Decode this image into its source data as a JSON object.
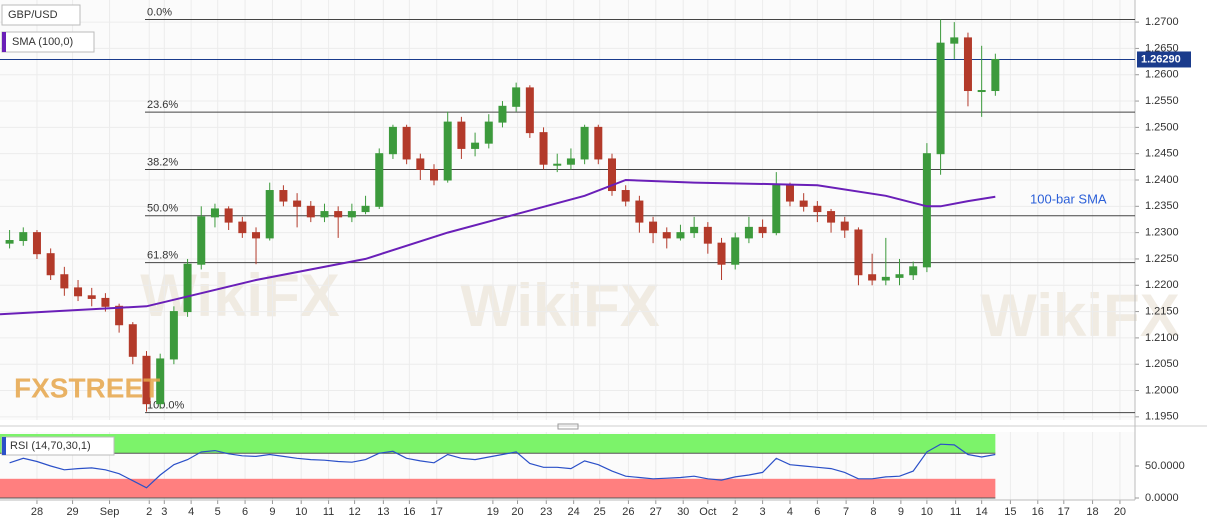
{
  "chart_data": {
    "type": "candlestick",
    "title": "GBP/USD",
    "bull_color": "#3c9a3c",
    "bear_color": "#b33a2a",
    "grid": true,
    "xlim": [
      -1.35,
      40.1
    ],
    "ylim": [
      1.1944,
      1.2742
    ],
    "x": [
      -1,
      -0.5,
      0,
      0.5,
      1,
      1.5,
      2,
      2.5,
      3,
      3.5,
      4,
      4.5,
      5,
      5.5,
      6,
      6.5,
      7,
      7.5,
      8,
      8.5,
      9,
      9.5,
      10,
      10.5,
      11,
      11.5,
      12,
      12.5,
      13,
      13.5,
      14,
      14.5,
      15,
      15.5,
      16,
      16.5,
      17,
      17.5,
      18,
      18.5,
      19,
      19.5,
      20,
      20.5,
      21,
      21.5,
      22,
      22.5,
      23,
      23.5,
      24,
      24.5,
      25,
      25.5,
      26,
      26.5,
      27,
      27.5,
      28,
      28.5,
      29,
      29.5,
      30,
      30.5,
      31,
      31.5,
      32,
      32.5,
      33,
      33.5,
      34,
      34.5,
      35
    ],
    "candles": [
      [
        1.228,
        1.2305,
        1.227,
        1.2285
      ],
      [
        1.2285,
        1.231,
        1.2275,
        1.23
      ],
      [
        1.23,
        1.2305,
        1.225,
        1.226
      ],
      [
        1.226,
        1.227,
        1.221,
        1.222
      ],
      [
        1.222,
        1.2235,
        1.218,
        1.2195
      ],
      [
        1.2195,
        1.221,
        1.217,
        1.218
      ],
      [
        1.218,
        1.2195,
        1.216,
        1.2175
      ],
      [
        1.2175,
        1.2185,
        1.215,
        1.216
      ],
      [
        1.216,
        1.2165,
        1.211,
        1.2125
      ],
      [
        1.2125,
        1.213,
        1.205,
        1.2065
      ],
      [
        1.2065,
        1.2075,
        1.196,
        1.1975
      ],
      [
        1.1975,
        1.207,
        1.1965,
        1.206
      ],
      [
        1.206,
        1.216,
        1.205,
        1.215
      ],
      [
        1.215,
        1.225,
        1.214,
        1.224
      ],
      [
        1.224,
        1.235,
        1.223,
        1.233
      ],
      [
        1.233,
        1.2355,
        1.231,
        1.2345
      ],
      [
        1.2345,
        1.235,
        1.2305,
        1.232
      ],
      [
        1.232,
        1.233,
        1.229,
        1.23
      ],
      [
        1.23,
        1.231,
        1.224,
        1.229
      ],
      [
        1.229,
        1.2395,
        1.2285,
        1.238
      ],
      [
        1.238,
        1.239,
        1.235,
        1.236
      ],
      [
        1.236,
        1.2375,
        1.231,
        1.235
      ],
      [
        1.235,
        1.236,
        1.232,
        1.233
      ],
      [
        1.233,
        1.2355,
        1.232,
        1.234
      ],
      [
        1.234,
        1.235,
        1.229,
        1.233
      ],
      [
        1.233,
        1.2355,
        1.232,
        1.234
      ],
      [
        1.234,
        1.237,
        1.2335,
        1.235
      ],
      [
        1.235,
        1.246,
        1.2345,
        1.245
      ],
      [
        1.245,
        1.2505,
        1.244,
        1.25
      ],
      [
        1.25,
        1.2505,
        1.243,
        1.244
      ],
      [
        1.244,
        1.245,
        1.24,
        1.242
      ],
      [
        1.242,
        1.243,
        1.239,
        1.24
      ],
      [
        1.24,
        1.253,
        1.2395,
        1.251
      ],
      [
        1.251,
        1.252,
        1.244,
        1.246
      ],
      [
        1.246,
        1.249,
        1.2445,
        1.247
      ],
      [
        1.247,
        1.2525,
        1.246,
        1.251
      ],
      [
        1.251,
        1.255,
        1.25,
        1.254
      ],
      [
        1.254,
        1.2585,
        1.253,
        1.2575
      ],
      [
        1.2575,
        1.258,
        1.248,
        1.249
      ],
      [
        1.249,
        1.25,
        1.242,
        1.243
      ],
      [
        1.243,
        1.245,
        1.2415,
        1.243
      ],
      [
        1.243,
        1.246,
        1.242,
        1.244
      ],
      [
        1.244,
        1.2505,
        1.243,
        1.25
      ],
      [
        1.25,
        1.2505,
        1.243,
        1.244
      ],
      [
        1.244,
        1.245,
        1.237,
        1.238
      ],
      [
        1.238,
        1.239,
        1.235,
        1.236
      ],
      [
        1.236,
        1.237,
        1.23,
        1.232
      ],
      [
        1.232,
        1.233,
        1.228,
        1.23
      ],
      [
        1.23,
        1.231,
        1.227,
        1.229
      ],
      [
        1.229,
        1.2315,
        1.2285,
        1.23
      ],
      [
        1.23,
        1.233,
        1.229,
        1.231
      ],
      [
        1.231,
        1.232,
        1.226,
        1.228
      ],
      [
        1.228,
        1.229,
        1.221,
        1.224
      ],
      [
        1.224,
        1.23,
        1.223,
        1.229
      ],
      [
        1.229,
        1.233,
        1.228,
        1.231
      ],
      [
        1.231,
        1.2325,
        1.229,
        1.23
      ],
      [
        1.23,
        1.2415,
        1.2295,
        1.239
      ],
      [
        1.239,
        1.2395,
        1.235,
        1.236
      ],
      [
        1.236,
        1.2375,
        1.234,
        1.235
      ],
      [
        1.235,
        1.236,
        1.232,
        1.234
      ],
      [
        1.234,
        1.2345,
        1.23,
        1.232
      ],
      [
        1.232,
        1.233,
        1.229,
        1.2305
      ],
      [
        1.2305,
        1.231,
        1.22,
        1.222
      ],
      [
        1.222,
        1.226,
        1.22,
        1.221
      ],
      [
        1.221,
        1.229,
        1.22,
        1.2215
      ],
      [
        1.2215,
        1.225,
        1.22,
        1.222
      ],
      [
        1.222,
        1.2245,
        1.221,
        1.2235
      ],
      [
        1.2235,
        1.247,
        1.2225,
        1.245
      ],
      [
        1.245,
        1.2705,
        1.241,
        1.266
      ],
      [
        1.266,
        1.27,
        1.263,
        1.267
      ],
      [
        1.267,
        1.268,
        1.254,
        1.257
      ],
      [
        1.257,
        1.2655,
        1.252,
        1.257
      ],
      [
        1.257,
        1.264,
        1.256,
        1.2629
      ]
    ],
    "sma": {
      "name": "SMA (100,0)",
      "color": "#6a1fb8",
      "x": [
        -1.35,
        4,
        6,
        8,
        12,
        15,
        17.5,
        20,
        21.5,
        24,
        27,
        28.5,
        31,
        32.5,
        33,
        34,
        35
      ],
      "values": [
        1.2145,
        1.216,
        1.2185,
        1.221,
        1.225,
        1.23,
        1.2335,
        1.237,
        1.24,
        1.2395,
        1.2392,
        1.239,
        1.237,
        1.235,
        1.235,
        1.236,
        1.2368
      ]
    },
    "annotation": "100-bar SMA",
    "fibonacci": [
      {
        "label": "0.0%",
        "value": 1.2705
      },
      {
        "label": "23.6%",
        "value": 1.2529
      },
      {
        "label": "38.2%",
        "value": 1.242
      },
      {
        "label": "50.0%",
        "value": 1.2332
      },
      {
        "label": "61.8%",
        "value": 1.2243
      },
      {
        "label": "100.0%",
        "value": 1.1958
      }
    ],
    "last": {
      "value": 1.2629,
      "label": "1.26290"
    },
    "yticks": [
      {
        "value": 1.195,
        "label": "1.1950"
      },
      {
        "value": 1.2,
        "label": "1.2000"
      },
      {
        "value": 1.205,
        "label": "1.2050"
      },
      {
        "value": 1.21,
        "label": "1.2100"
      },
      {
        "value": 1.215,
        "label": "1.2150"
      },
      {
        "value": 1.22,
        "label": "1.2200"
      },
      {
        "value": 1.225,
        "label": "1.2250"
      },
      {
        "value": 1.23,
        "label": "1.2300"
      },
      {
        "value": 1.235,
        "label": "1.2350"
      },
      {
        "value": 1.24,
        "label": "1.2400"
      },
      {
        "value": 1.245,
        "label": "1.2450"
      },
      {
        "value": 1.25,
        "label": "1.2500"
      },
      {
        "value": 1.255,
        "label": "1.2550"
      },
      {
        "value": 1.26,
        "label": "1.2600"
      },
      {
        "value": 1.265,
        "label": "1.2650"
      },
      {
        "value": 1.27,
        "label": "1.2700"
      }
    ],
    "xticks": [
      {
        "value": 0,
        "label": "28"
      },
      {
        "value": 1.3,
        "label": "29"
      },
      {
        "value": 2.65,
        "label": "Sep"
      },
      {
        "value": 4.1,
        "label": "2"
      },
      {
        "value": 4.65,
        "label": "3"
      },
      {
        "value": 5.63,
        "label": "4"
      },
      {
        "value": 6.6,
        "label": "5"
      },
      {
        "value": 7.6,
        "label": "6"
      },
      {
        "value": 8.6,
        "label": "9"
      },
      {
        "value": 9.65,
        "label": "10"
      },
      {
        "value": 10.65,
        "label": "11"
      },
      {
        "value": 11.6,
        "label": "12"
      },
      {
        "value": 12.65,
        "label": "13"
      },
      {
        "value": 13.6,
        "label": "16"
      },
      {
        "value": 14.6,
        "label": "17"
      },
      {
        "value": 16.65,
        "label": "19"
      },
      {
        "value": 17.55,
        "label": "20"
      },
      {
        "value": 18.6,
        "label": "23"
      },
      {
        "value": 19.6,
        "label": "24"
      },
      {
        "value": 20.55,
        "label": "25"
      },
      {
        "value": 21.6,
        "label": "26"
      },
      {
        "value": 22.6,
        "label": "27"
      },
      {
        "value": 23.6,
        "label": "30"
      },
      {
        "value": 24.5,
        "label": "Oct"
      },
      {
        "value": 25.5,
        "label": "2"
      },
      {
        "value": 26.5,
        "label": "3"
      },
      {
        "value": 27.5,
        "label": "4"
      },
      {
        "value": 28.5,
        "label": "6"
      },
      {
        "value": 29.55,
        "label": "7"
      },
      {
        "value": 30.55,
        "label": "8"
      },
      {
        "value": 31.55,
        "label": "9"
      },
      {
        "value": 32.5,
        "label": "10"
      },
      {
        "value": 33.55,
        "label": "11"
      },
      {
        "value": 34.5,
        "label": "14"
      },
      {
        "value": 35.55,
        "label": "15"
      },
      {
        "value": 36.55,
        "label": "16"
      },
      {
        "value": 37.5,
        "label": "17"
      },
      {
        "value": 38.55,
        "label": "18"
      },
      {
        "value": 39.55,
        "label": "20"
      }
    ],
    "rsi": {
      "name": "RSI (14,70,30,1)",
      "color": "#2b50c8",
      "ylim": [
        0,
        100
      ],
      "yticks": [
        {
          "value": 50,
          "label": "50.0000"
        },
        {
          "value": 0,
          "label": "0.0000"
        }
      ],
      "bands": [
        {
          "from": 70,
          "to": 100,
          "color": "#7cf36a"
        },
        {
          "from": 0,
          "to": 30,
          "color": "#ff7f7f"
        }
      ],
      "values": [
        55,
        62,
        57,
        50,
        44,
        46,
        47,
        44,
        38,
        27,
        16,
        36,
        52,
        60,
        72,
        74,
        69,
        66,
        65,
        68,
        65,
        62,
        60,
        59,
        57,
        56,
        60,
        70,
        73,
        62,
        58,
        55,
        68,
        62,
        60,
        64,
        68,
        72,
        54,
        48,
        48,
        46,
        58,
        52,
        42,
        34,
        32,
        30,
        31,
        32,
        34,
        30,
        28,
        33,
        36,
        40,
        62,
        52,
        50,
        48,
        46,
        40,
        30,
        30,
        33,
        34,
        42,
        72,
        84,
        83,
        68,
        64,
        68
      ]
    },
    "logo": "FXSTREET",
    "watermark": "WikiFX"
  }
}
